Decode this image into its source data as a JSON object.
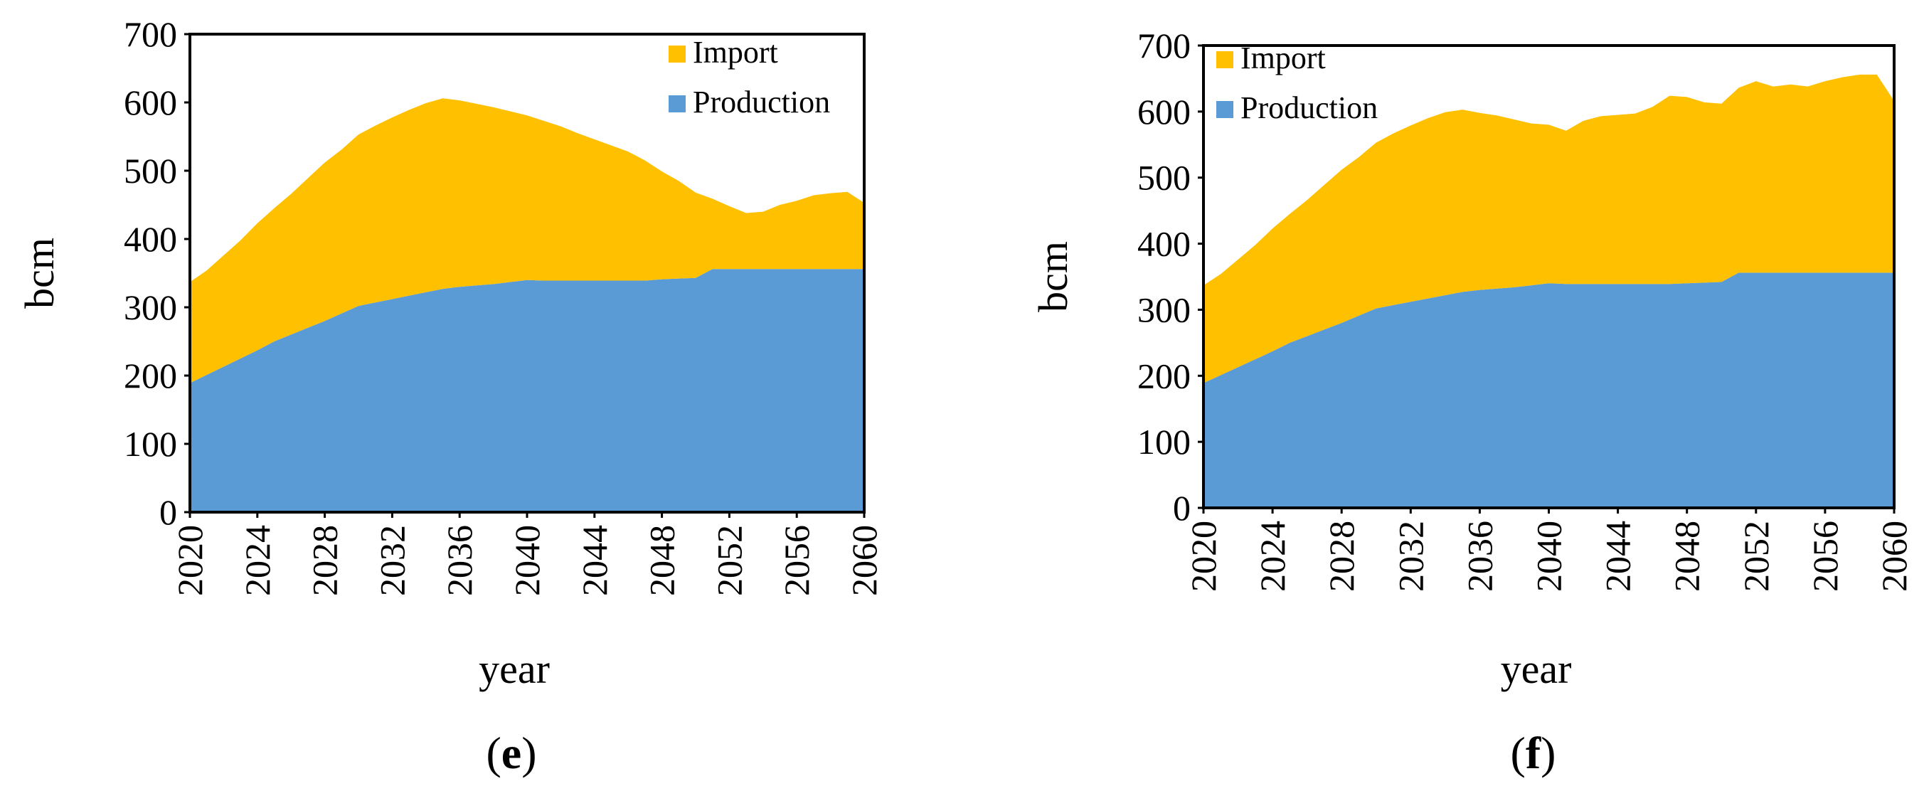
{
  "colors": {
    "import": "#FFC000",
    "production": "#5B9BD5",
    "axis": "#000000",
    "background": "#FFFFFF"
  },
  "chart_data": [
    {
      "type": "area",
      "stacked": true,
      "panel_label": "(e)",
      "panel_letter": "e",
      "xlabel": "year",
      "ylabel": "bcm",
      "ylim": [
        0,
        700
      ],
      "yticks": [
        "0",
        "100",
        "200",
        "300",
        "400",
        "500",
        "600",
        "700"
      ],
      "xticks": [
        "2020",
        "2024",
        "2028",
        "2032",
        "2036",
        "2040",
        "2044",
        "2048",
        "2052",
        "2056",
        "2060"
      ],
      "grid": false,
      "legend_position": "top-right",
      "legend": [
        "Import",
        "Production"
      ],
      "x": [
        2020,
        2021,
        2022,
        2023,
        2024,
        2025,
        2026,
        2027,
        2028,
        2029,
        2030,
        2031,
        2032,
        2033,
        2034,
        2035,
        2036,
        2037,
        2038,
        2039,
        2040,
        2041,
        2042,
        2043,
        2044,
        2045,
        2046,
        2047,
        2048,
        2049,
        2050,
        2051,
        2052,
        2053,
        2054,
        2055,
        2056,
        2057,
        2058,
        2059,
        2060
      ],
      "series": [
        {
          "name": "Production",
          "color": "#5B9BD5",
          "values": [
            189,
            201,
            213,
            225,
            237,
            250,
            260,
            270,
            280,
            291,
            302,
            307,
            312,
            317,
            322,
            327,
            330,
            332,
            334,
            337,
            340,
            339,
            339,
            339,
            339,
            339,
            339,
            339,
            341,
            342,
            343,
            356,
            356,
            356,
            356,
            356,
            356,
            356,
            356,
            356,
            356
          ]
        },
        {
          "name": "Import",
          "color": "#FFC000",
          "values": [
            148,
            153,
            163,
            173,
            186,
            195,
            206,
            219,
            232,
            240,
            251,
            259,
            266,
            272,
            277,
            279,
            273,
            266,
            259,
            250,
            241,
            234,
            226,
            216,
            207,
            198,
            189,
            176,
            158,
            143,
            125,
            103,
            92,
            82,
            84,
            94,
            100,
            108,
            111,
            113,
            97
          ]
        }
      ]
    },
    {
      "type": "area",
      "stacked": true,
      "panel_label": "(f)",
      "panel_letter": "f",
      "xlabel": "year",
      "ylabel": "bcm",
      "ylim": [
        0,
        700
      ],
      "yticks": [
        "0",
        "100",
        "200",
        "300",
        "400",
        "500",
        "600",
        "700"
      ],
      "xticks": [
        "2020",
        "2024",
        "2028",
        "2032",
        "2036",
        "2040",
        "2044",
        "2048",
        "2052",
        "2056",
        "2060"
      ],
      "grid": false,
      "legend_position": "top-left",
      "legend": [
        "Import",
        "Production"
      ],
      "x": [
        2020,
        2021,
        2022,
        2023,
        2024,
        2025,
        2026,
        2027,
        2028,
        2029,
        2030,
        2031,
        2032,
        2033,
        2034,
        2035,
        2036,
        2037,
        2038,
        2039,
        2040,
        2041,
        2042,
        2043,
        2044,
        2045,
        2046,
        2047,
        2048,
        2049,
        2050,
        2051,
        2052,
        2053,
        2054,
        2055,
        2056,
        2057,
        2058,
        2059,
        2060
      ],
      "series": [
        {
          "name": "Production",
          "color": "#5B9BD5",
          "values": [
            189,
            201,
            213,
            225,
            237,
            250,
            260,
            270,
            280,
            291,
            302,
            307,
            312,
            317,
            322,
            327,
            330,
            332,
            334,
            337,
            340,
            339,
            339,
            339,
            339,
            339,
            339,
            339,
            340,
            341,
            342,
            356,
            356,
            356,
            356,
            356,
            356,
            356,
            356,
            356,
            356
          ]
        },
        {
          "name": "Import",
          "color": "#FFC000",
          "values": [
            148,
            153,
            163,
            173,
            186,
            195,
            206,
            219,
            232,
            240,
            251,
            260,
            267,
            273,
            277,
            276,
            268,
            262,
            254,
            245,
            240,
            232,
            247,
            254,
            256,
            258,
            268,
            285,
            282,
            273,
            270,
            280,
            290,
            282,
            285,
            282,
            290,
            296,
            300,
            300,
            260
          ]
        }
      ]
    }
  ]
}
